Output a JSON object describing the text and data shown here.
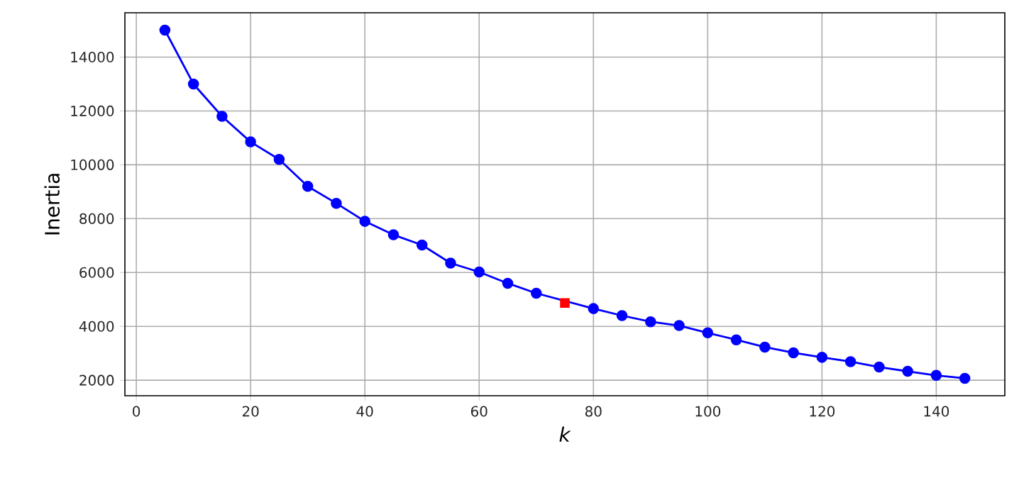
{
  "chart_data": {
    "type": "line",
    "xlabel": "*k*",
    "ylabel": "Inertia",
    "xlim": [
      -2,
      152
    ],
    "ylim": [
      1424,
      15646
    ],
    "xticks": [
      0,
      20,
      40,
      60,
      80,
      100,
      120,
      140
    ],
    "yticks": [
      2000,
      4000,
      6000,
      8000,
      10000,
      12000,
      14000
    ],
    "grid": true,
    "marker": "circle",
    "line_style": "solid",
    "series": [
      {
        "color": "#0000ff",
        "x": [
          5,
          10,
          15,
          20,
          25,
          30,
          35,
          40,
          45,
          50,
          55,
          60,
          65,
          70,
          75,
          80,
          85,
          90,
          95,
          100,
          105,
          110,
          115,
          120,
          125,
          130,
          135,
          140,
          145
        ],
        "values": [
          15000,
          13000,
          11800,
          10850,
          10200,
          9200,
          8570,
          7900,
          7400,
          7020,
          6350,
          6020,
          5600,
          5230,
          null,
          4660,
          4400,
          4170,
          4030,
          3760,
          3500,
          3230,
          3020,
          2850,
          2690,
          2490,
          2330,
          2180,
          2070
        ]
      },
      {
        "type": "scatter",
        "marker": "square",
        "color": "#ff0000",
        "x": [
          75
        ],
        "values": [
          4870
        ]
      }
    ]
  }
}
